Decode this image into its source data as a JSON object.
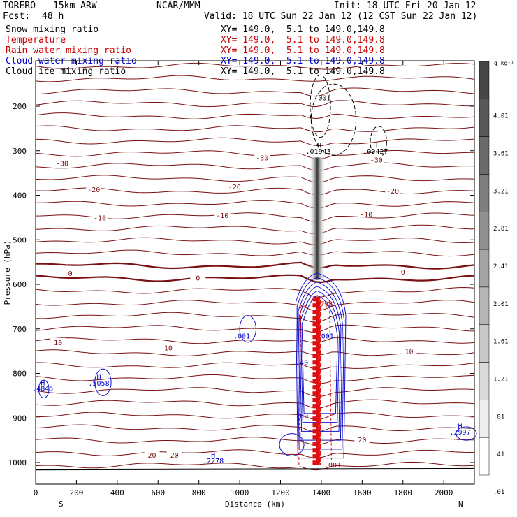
{
  "header": {
    "project": "TORERO",
    "model": "15km ARW",
    "center": "NCAR/MMM",
    "init": "Init: 18 UTC Fri 20 Jan 12",
    "fcst_label": "Fcst:",
    "fcst_value": "48 h",
    "valid": "Valid: 18 UTC Sun 22 Jan 12 (12 CST Sun 22 Jan 12)"
  },
  "fields": [
    {
      "name": "Snow mixing ratio",
      "xy": "XY= 149.0,  5.1 to 149.0,149.8",
      "color": "#000000"
    },
    {
      "name": "Temperature",
      "xy": "XY= 149.0,  5.1 to 149.0,149.8",
      "color": "#cc0000"
    },
    {
      "name": "Rain water mixing ratio",
      "xy": "XY= 149.0,  5.1 to 149.0,149.8",
      "color": "#cc0000"
    },
    {
      "name": "Cloud water mixing ratio",
      "xy": "XY= 149.0,  5.1 to 149.0,149.8",
      "color": "#0000cc"
    },
    {
      "name": "Cloud ice mixing ratio",
      "xy": "XY= 149.0,  5.1 to 149.0,149.8",
      "color": "#000000"
    }
  ],
  "colorbar": {
    "unit": "g kg⁻¹",
    "labels": [
      "4.01",
      "3.61",
      "3.21",
      "2.81",
      "2.41",
      "2.01",
      "1.61",
      "1.21",
      ".81",
      ".41",
      ".01"
    ]
  },
  "chart_data": {
    "type": "contour",
    "xlabel": "Distance (km)",
    "ylabel": "Pressure (hPa)",
    "xlim": [
      0,
      2150
    ],
    "ylim": [
      1025,
      100
    ],
    "x_ticks": [
      0,
      200,
      400,
      600,
      800,
      1000,
      1200,
      1400,
      1600,
      1800,
      2000
    ],
    "y_ticks": [
      200,
      300,
      400,
      500,
      600,
      700,
      800,
      900,
      1000
    ],
    "x_tick_labels": [
      "0",
      "200",
      "400",
      "600",
      "800",
      "1000",
      "1200",
      "1400",
      "1600",
      "1800",
      "2000"
    ],
    "y_tick_labels": [
      "200",
      "300",
      "400",
      "500",
      "600",
      "700",
      "800",
      "900",
      "1000"
    ],
    "left_end_label": "S",
    "right_end_label": "N",
    "temperature_labels": [
      {
        "text": "-30",
        "x": 130,
        "p": 328
      },
      {
        "text": "-30",
        "x": 1110,
        "p": 315
      },
      {
        "text": "-30",
        "x": 1670,
        "p": 320
      },
      {
        "text": "-20",
        "x": 285,
        "p": 387
      },
      {
        "text": "-20",
        "x": 975,
        "p": 380
      },
      {
        "text": "-20",
        "x": 1750,
        "p": 390
      },
      {
        "text": "-10",
        "x": 315,
        "p": 450
      },
      {
        "text": "-10",
        "x": 915,
        "p": 445
      },
      {
        "text": "-10",
        "x": 1620,
        "p": 442
      },
      {
        "text": "0",
        "x": 170,
        "p": 575
      },
      {
        "text": "0",
        "x": 795,
        "p": 585
      },
      {
        "text": "0",
        "x": 1800,
        "p": 572
      },
      {
        "text": "10",
        "x": 110,
        "p": 730
      },
      {
        "text": "10",
        "x": 650,
        "p": 742
      },
      {
        "text": "10",
        "x": 1830,
        "p": 750
      },
      {
        "text": "20",
        "x": 570,
        "p": 983
      },
      {
        "text": "20",
        "x": 680,
        "p": 983
      },
      {
        "text": "20",
        "x": 1600,
        "p": 948
      }
    ],
    "extrema_labels": [
      {
        "text": "H",
        "x": 35,
        "p": 820,
        "color": "#0000cc"
      },
      {
        "text": ".4845",
        "x": 35,
        "p": 833,
        "color": "#0000cc"
      },
      {
        "text": "H",
        "x": 310,
        "p": 808,
        "color": "#0000cc"
      },
      {
        "text": ".5058",
        "x": 310,
        "p": 821,
        "color": "#0000cc"
      },
      {
        "text": "H",
        "x": 870,
        "p": 982,
        "color": "#0000cc"
      },
      {
        "text": ".2278",
        "x": 870,
        "p": 995,
        "color": "#0000cc"
      },
      {
        "text": "H",
        "x": 2080,
        "p": 918,
        "color": "#0000cc"
      },
      {
        "text": ".2997",
        "x": 2080,
        "p": 931,
        "color": "#0000cc"
      },
      {
        "text": ".001",
        "x": 1010,
        "p": 715,
        "color": "#0000cc"
      },
      {
        "text": ".001",
        "x": 1420,
        "p": 715,
        "color": "#0000cc"
      },
      {
        "text": ".001",
        "x": 1405,
        "p": 180,
        "color": "#000000"
      },
      {
        "text": "H",
        "x": 1390,
        "p": 287,
        "color": "#000000"
      },
      {
        "text": ".01943",
        "x": 1385,
        "p": 300,
        "color": "#000000"
      },
      {
        "text": "H",
        "x": 1665,
        "p": 287,
        "color": "#000000"
      },
      {
        "text": ".00427",
        "x": 1665,
        "p": 300,
        "color": "#000000"
      },
      {
        "text": ".5798",
        "x": 1405,
        "p": 643,
        "color": "#cc0000"
      },
      {
        "text": ".001",
        "x": 1455,
        "p": 1005,
        "color": "#cc0000"
      },
      {
        "text": ".40",
        "x": 1305,
        "p": 775,
        "color": "#0000cc"
      },
      {
        "text": ".00",
        "x": 1305,
        "p": 895,
        "color": "#0000cc"
      }
    ]
  }
}
